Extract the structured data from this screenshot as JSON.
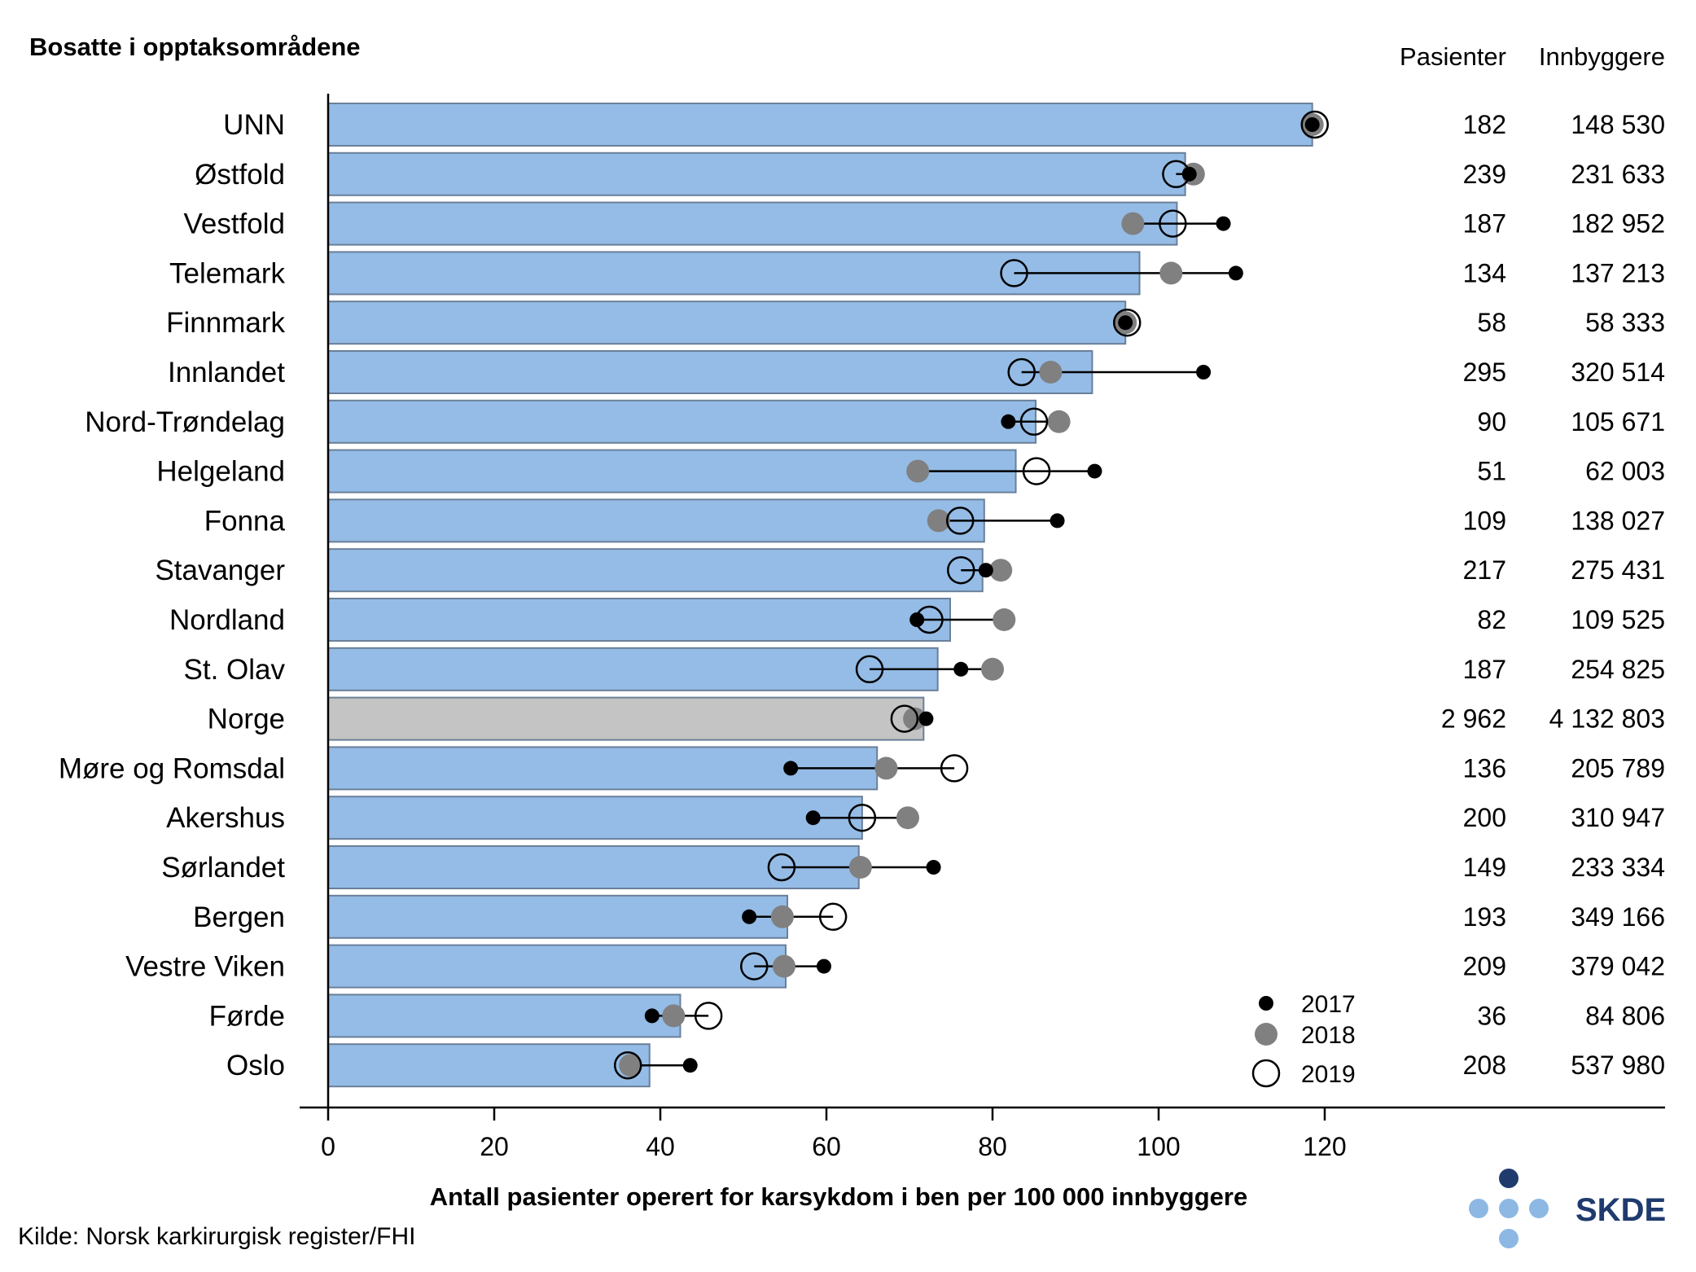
{
  "chart_data": {
    "type": "bar",
    "title": "Bosatte i opptaksområdene",
    "xlabel": "Antall pasienter operert for karsykdom i ben per 100 000 innbyggere",
    "xlim": [
      0,
      130
    ],
    "xticks": [
      "0",
      "20",
      "40",
      "60",
      "80",
      "100",
      "120"
    ],
    "tick_values": [
      0,
      20,
      40,
      60,
      80,
      100,
      120
    ],
    "column_headers": [
      "Pasienter",
      "Innbyggere"
    ],
    "categories": [
      "UNN",
      "Østfold",
      "Vestfold",
      "Telemark",
      "Finnmark",
      "Innlandet",
      "Nord-Trøndelag",
      "Helgeland",
      "Fonna",
      "Stavanger",
      "Nordland",
      "St. Olav",
      "Norge",
      "Møre og Romsdal",
      "Akershus",
      "Sørlandet",
      "Bergen",
      "Vestre Viken",
      "Førde",
      "Oslo"
    ],
    "bar_values": [
      118.5,
      103.2,
      102.2,
      97.7,
      96.0,
      92.0,
      85.2,
      82.8,
      79.0,
      78.8,
      74.9,
      73.4,
      71.7,
      66.1,
      64.3,
      63.9,
      55.3,
      55.1,
      42.4,
      38.7
    ],
    "series": [
      {
        "name": "2017",
        "values": [
          118.5,
          103.7,
          107.8,
          109.3,
          96.0,
          105.4,
          81.9,
          92.3,
          87.8,
          79.2,
          70.9,
          76.2,
          72.0,
          55.7,
          58.4,
          72.9,
          50.7,
          59.7,
          39.0,
          43.6
        ]
      },
      {
        "name": "2018",
        "values": [
          118.5,
          104.2,
          96.9,
          101.5,
          96.0,
          87.0,
          88.0,
          71.0,
          73.5,
          81.0,
          81.4,
          80.0,
          70.6,
          67.2,
          69.8,
          64.1,
          54.7,
          54.9,
          41.6,
          36.4
        ]
      },
      {
        "name": "2019",
        "values": [
          118.8,
          102.1,
          101.7,
          82.6,
          96.2,
          83.5,
          85.0,
          85.3,
          76.1,
          76.2,
          72.4,
          65.2,
          69.4,
          75.4,
          64.3,
          54.6,
          60.8,
          51.3,
          45.8,
          36.1
        ]
      }
    ],
    "highlight_category": "Norge",
    "pasienter": [
      "182",
      "239",
      "187",
      "134",
      "58",
      "295",
      "90",
      "51",
      "109",
      "217",
      "82",
      "187",
      "2 962",
      "136",
      "200",
      "149",
      "193",
      "209",
      "36",
      "208"
    ],
    "innbyggere": [
      "148 530",
      "231 633",
      "182 952",
      "137 213",
      "58 333",
      "320 514",
      "105 671",
      "62 003",
      "138 027",
      "275 431",
      "109 525",
      "254 825",
      "4 132 803",
      "205 789",
      "310 947",
      "233 334",
      "349 166",
      "379 042",
      "84 806",
      "537 980"
    ],
    "legend_placement": "bottom-right",
    "grid": false
  },
  "source": "Kilde: Norsk karkirurgisk register/FHI",
  "logo": {
    "text": "SKDE",
    "dark_color": "#1f3b6e",
    "light_color": "#8db8e3"
  },
  "colors": {
    "bar": "#94bce6",
    "bar_border": "#6a7f99",
    "highlight_bar": "#c4c4c4",
    "y2017": "#000000",
    "y2018": "#808080",
    "y2019_stroke": "#000000"
  }
}
